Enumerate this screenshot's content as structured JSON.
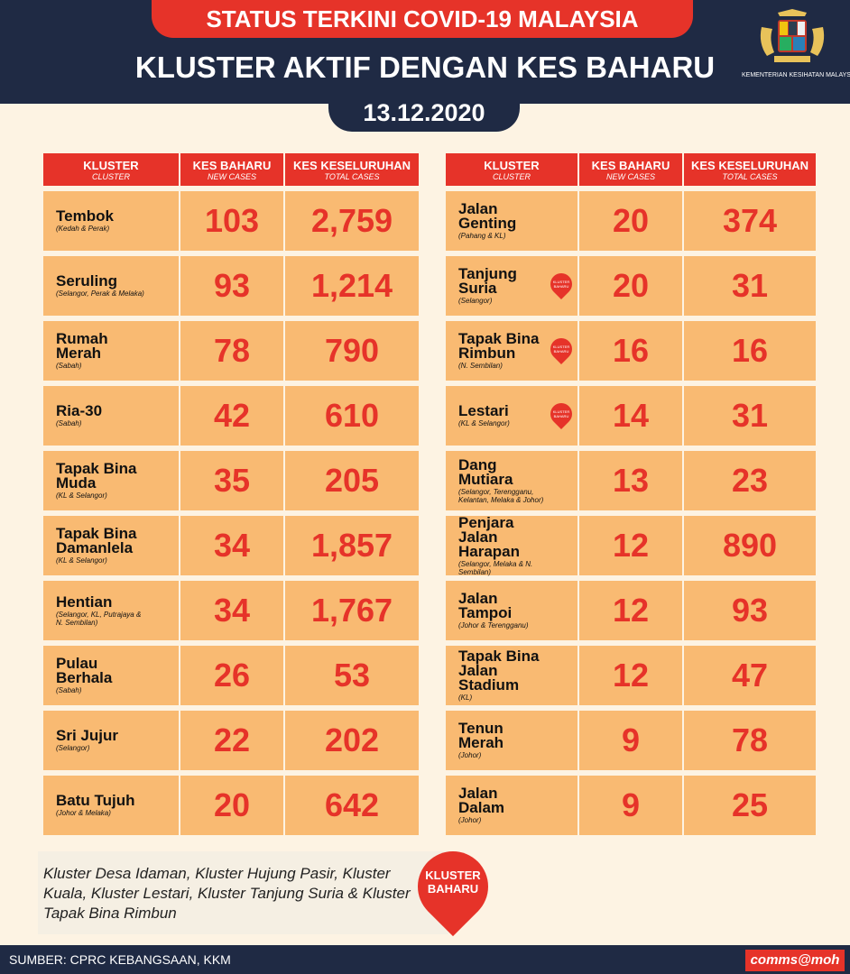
{
  "header": {
    "top_label": "STATUS TERKINI COVID-19 MALAYSIA",
    "title": "KLUSTER AKTIF DENGAN KES BAHARU",
    "date": "13.12.2020",
    "ministry": "KEMENTERIAN KESIHATAN MALAYSIA"
  },
  "columns": {
    "cluster": "KLUSTER",
    "cluster_en": "CLUSTER",
    "new": "KES BAHARU",
    "new_en": "NEW CASES",
    "total": "KES KESELURUHAN",
    "total_en": "TOTAL CASES"
  },
  "badge_label": "KLUSTER BAHARU",
  "left_rows": [
    {
      "name": "Tembok",
      "state": "(Kedah & Perak)",
      "new": "103",
      "total": "2,759",
      "badge": false
    },
    {
      "name": "Seruling",
      "state": "(Selangor, Perak & Melaka)",
      "new": "93",
      "total": "1,214",
      "badge": false
    },
    {
      "name": "Rumah Merah",
      "state": "(Sabah)",
      "new": "78",
      "total": "790",
      "badge": false
    },
    {
      "name": "Ria-30",
      "state": "(Sabah)",
      "new": "42",
      "total": "610",
      "badge": false
    },
    {
      "name": "Tapak Bina Muda",
      "state": "(KL & Selangor)",
      "new": "35",
      "total": "205",
      "badge": false
    },
    {
      "name": "Tapak Bina Damanlela",
      "state": "(KL & Selangor)",
      "new": "34",
      "total": "1,857",
      "badge": false
    },
    {
      "name": "Hentian",
      "state": "(Selangor, KL, Putrajaya & N. Sembilan)",
      "new": "34",
      "total": "1,767",
      "badge": false
    },
    {
      "name": "Pulau Berhala",
      "state": "(Sabah)",
      "new": "26",
      "total": "53",
      "badge": false
    },
    {
      "name": "Sri Jujur",
      "state": "(Selangor)",
      "new": "22",
      "total": "202",
      "badge": false
    },
    {
      "name": "Batu Tujuh",
      "state": "(Johor & Melaka)",
      "new": "20",
      "total": "642",
      "badge": false
    }
  ],
  "right_rows": [
    {
      "name": "Jalan Genting",
      "state": "(Pahang & KL)",
      "new": "20",
      "total": "374",
      "badge": false
    },
    {
      "name": "Tanjung Suria",
      "state": "(Selangor)",
      "new": "20",
      "total": "31",
      "badge": true
    },
    {
      "name": "Tapak Bina Rimbun",
      "state": "(N. Sembilan)",
      "new": "16",
      "total": "16",
      "badge": true
    },
    {
      "name": "Lestari",
      "state": "(KL & Selangor)",
      "new": "14",
      "total": "31",
      "badge": true
    },
    {
      "name": "Dang Mutiara",
      "state": "(Selangor, Terengganu, Kelantan, Melaka & Johor)",
      "new": "13",
      "total": "23",
      "badge": false
    },
    {
      "name": "Penjara Jalan Harapan",
      "state": "(Selangor, Melaka & N. Sembilan)",
      "new": "12",
      "total": "890",
      "badge": false
    },
    {
      "name": "Jalan Tampoi",
      "state": "(Johor & Terengganu)",
      "new": "12",
      "total": "93",
      "badge": false
    },
    {
      "name": "Tapak Bina Jalan Stadium",
      "state": "(KL)",
      "new": "12",
      "total": "47",
      "badge": false
    },
    {
      "name": "Tenun Merah",
      "state": "(Johor)",
      "new": "9",
      "total": "78",
      "badge": false
    },
    {
      "name": "Jalan Dalam",
      "state": "(Johor)",
      "new": "9",
      "total": "25",
      "badge": false
    }
  ],
  "footer": {
    "note": "Kluster Desa Idaman, Kluster Hujung Pasir, Kluster Kuala, Kluster Lestari, Kluster Tanjung Suria & Kluster Tapak Bina Rimbun",
    "pin_label": "KLUSTER BAHARU",
    "source": "SUMBER: CPRC KEBANGSAAN, KKM",
    "brand": "comms@moh"
  },
  "colors": {
    "navy": "#1f2a44",
    "red": "#e63329",
    "cell": "#f9ba72"
  }
}
